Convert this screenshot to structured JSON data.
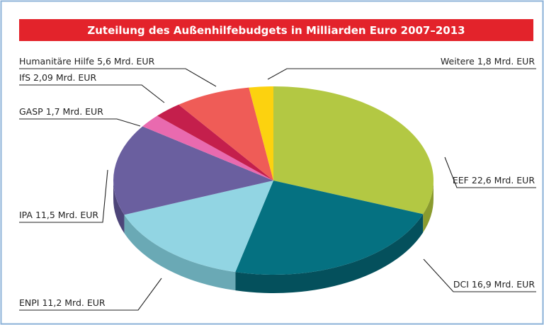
{
  "chart_data": {
    "type": "pie",
    "title": "Zuteilung des Außenhilfebudgets in Milliarden Euro 2007–2013",
    "categories": [
      "EEF",
      "DCI",
      "ENPI",
      "IPA",
      "GASP",
      "IfS",
      "Humanitäre Hilfe",
      "Weitere"
    ],
    "values": [
      22.6,
      16.9,
      11.2,
      11.5,
      1.7,
      2.09,
      5.6,
      1.8
    ],
    "value_labels": [
      "22,6 Mrd. EUR",
      "16,9 Mrd. EUR",
      "11,2 Mrd. EUR",
      "11,5 Mrd. EUR",
      "1,7 Mrd. EUR",
      "2,09 Mrd. EUR",
      "5,6 Mrd. EUR",
      "1,8 Mrd. EUR"
    ],
    "colors": [
      "#b3c843",
      "#057181",
      "#92d5e3",
      "#6a5f9f",
      "#e96aaf",
      "#c41f4c",
      "#ef5c57",
      "#fcd20f"
    ],
    "side_colors": [
      "#8a9b2e",
      "#04505c",
      "#6aa9b5",
      "#4d4579",
      "#b84e88",
      "#8f1537",
      "#b8423f",
      "#c9a50a"
    ]
  }
}
